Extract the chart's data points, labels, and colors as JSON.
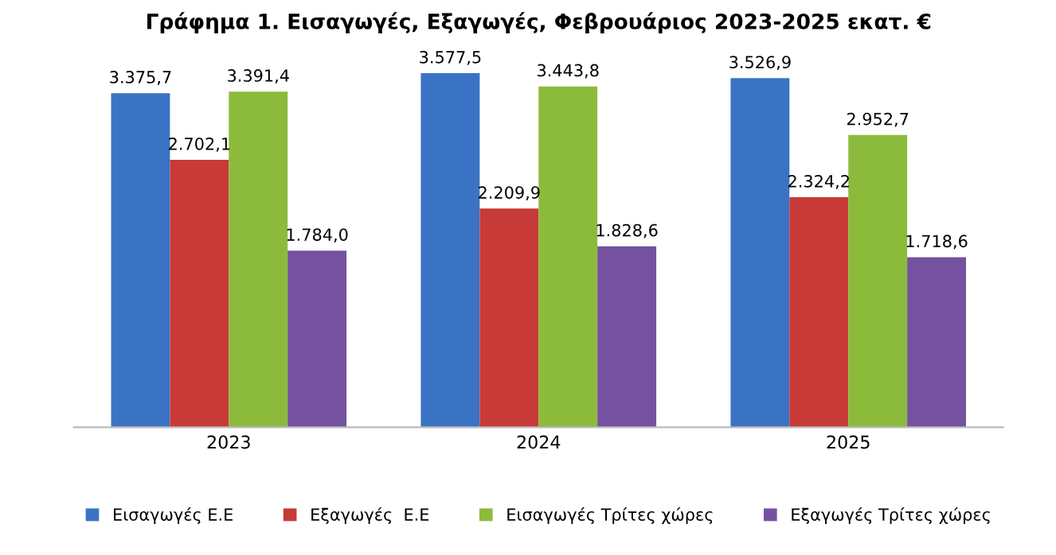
{
  "chart_data": {
    "type": "bar",
    "title": "Γράφημα 1. Εισαγωγές, Εξαγωγές, Φεβρουάριος 2023-2025 εκατ. €",
    "categories": [
      "2023",
      "2024",
      "2025"
    ],
    "series": [
      {
        "name": "Εισαγωγές Ε.Ε",
        "color": "#3a73c4",
        "values": [
          3375.7,
          3577.5,
          3526.9
        ],
        "value_labels": [
          "3.375,7",
          "3.577,5",
          "3.526,9"
        ]
      },
      {
        "name": "Εξαγωγές  Ε.Ε",
        "color": "#c73a37",
        "values": [
          2702.1,
          2209.9,
          2324.2
        ],
        "value_labels": [
          "2.702,1",
          "2.209,9",
          "2.324,2"
        ]
      },
      {
        "name": "Εισαγωγές Τρίτες χώρες",
        "color": "#8cbb3c",
        "values": [
          3391.4,
          3443.8,
          2952.7
        ],
        "value_labels": [
          "3.391,4",
          "3.443,8",
          "2.952,7"
        ]
      },
      {
        "name": "Εξαγωγές Τρίτες χώρες",
        "color": "#7452a0",
        "values": [
          1784.0,
          1828.6,
          1718.6
        ],
        "value_labels": [
          "1.784,0",
          "1.828,6",
          "1.718,6"
        ]
      }
    ],
    "legend": "bottom",
    "grid": false
  }
}
